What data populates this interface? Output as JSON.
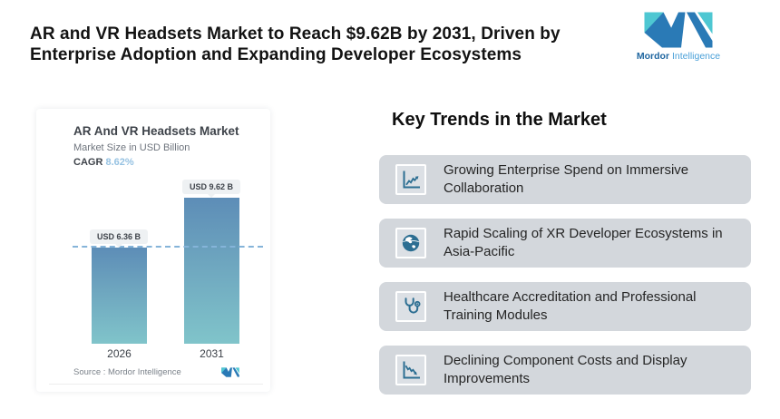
{
  "header": {
    "title_line1": "AR and VR Headsets Market to Reach $9.62B by 2031, Driven by",
    "title_line2": "Enterprise Adoption and Expanding Developer Ecosystems"
  },
  "brand": {
    "name_bold": "Mordor",
    "name_light": "Intelligence",
    "teal": "#4ec7d2",
    "blue": "#2a7ab6"
  },
  "chart": {
    "title": "AR And VR Headsets Market",
    "subtitle": "Market Size in USD Billion",
    "cagr_label": "CAGR",
    "cagr_value": "8.62%",
    "source": "Source :  Mordor Intelligence"
  },
  "chart_data": {
    "type": "bar",
    "title": "AR And VR Headsets Market",
    "ylabel": "Market Size in USD Billion",
    "categories": [
      "2026",
      "2031"
    ],
    "values": [
      6.36,
      9.62
    ],
    "value_labels": [
      "USD 6.36 B",
      "USD 9.62 B"
    ],
    "cagr": "8.62%",
    "reference_line": 6.36,
    "grid": false,
    "legend": false,
    "bar_gradient_top": "#5d8db7",
    "bar_gradient_bottom": "#80c4ca",
    "reference_line_color": "#85b4d9"
  },
  "trends": {
    "heading": "Key Trends in the Market",
    "box_bg": "#d3d7dc",
    "icon_color": "#2c6e92",
    "items": [
      {
        "icon": "chart-increasing-icon",
        "text": "Growing Enterprise Spend on Immersive Collaboration"
      },
      {
        "icon": "globe-icon",
        "text": "Rapid Scaling of XR Developer Ecosystems in Asia-Pacific"
      },
      {
        "icon": "stethoscope-icon",
        "text": "Healthcare Accreditation and Professional Training Modules"
      },
      {
        "icon": "chart-declining-icon",
        "text": "Declining Component Costs and Display Improvements"
      }
    ]
  }
}
